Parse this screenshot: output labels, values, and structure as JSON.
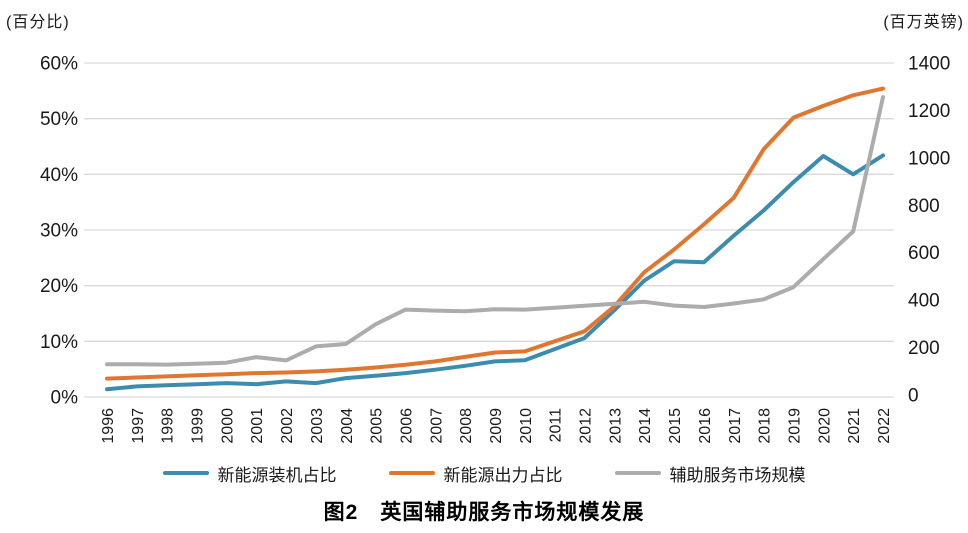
{
  "title": "图2　英国辅助服务市场规模发展",
  "chart_data": {
    "type": "line",
    "grid": true,
    "legend_position": "bottom",
    "x": [
      1996,
      1997,
      1998,
      1999,
      2000,
      2001,
      2002,
      2003,
      2004,
      2005,
      2006,
      2007,
      2008,
      2009,
      2010,
      2011,
      2012,
      2013,
      2014,
      2015,
      2016,
      2017,
      2018,
      2019,
      2020,
      2021,
      2022
    ],
    "left_axis": {
      "unit": "(百分比)",
      "min": 0,
      "max": 60,
      "tick_step": 10,
      "tick_labels": [
        "0%",
        "10%",
        "20%",
        "30%",
        "40%",
        "50%",
        "60%"
      ]
    },
    "right_axis": {
      "unit": "(百万英镑)",
      "min": 0,
      "max": 1400,
      "tick_step": 200,
      "tick_labels": [
        "0",
        "200",
        "400",
        "600",
        "800",
        "1000",
        "1200",
        "1400"
      ]
    },
    "series": [
      {
        "name": "新能源装机占比",
        "axis": "left",
        "color": "#3C8CB0",
        "values": [
          1.4,
          1.9,
          2.1,
          2.3,
          2.5,
          2.3,
          2.8,
          2.5,
          3.4,
          3.8,
          4.3,
          4.9,
          5.6,
          6.4,
          6.6,
          8.6,
          10.6,
          15.6,
          20.9,
          24.4,
          24.2,
          29.0,
          33.5,
          38.6,
          43.3,
          40.0,
          43.4
        ]
      },
      {
        "name": "新能源出力占比",
        "axis": "left",
        "color": "#E0762F",
        "values": [
          3.3,
          3.5,
          3.7,
          3.9,
          4.1,
          4.3,
          4.4,
          4.6,
          4.9,
          5.3,
          5.8,
          6.4,
          7.2,
          8.0,
          8.2,
          10.0,
          11.8,
          16.3,
          22.4,
          26.5,
          31.0,
          35.8,
          44.5,
          50.2,
          52.3,
          54.2,
          55.4
        ]
      },
      {
        "name": "辅助服务市场规模",
        "axis": "right",
        "color": "#ACACAC",
        "values": [
          130,
          130,
          128,
          132,
          136,
          160,
          146,
          205,
          215,
          298,
          360,
          356,
          353,
          362,
          360,
          368,
          376,
          385,
          393,
          377,
          371,
          386,
          403,
          455,
          573,
          690,
          1256
        ]
      }
    ]
  }
}
